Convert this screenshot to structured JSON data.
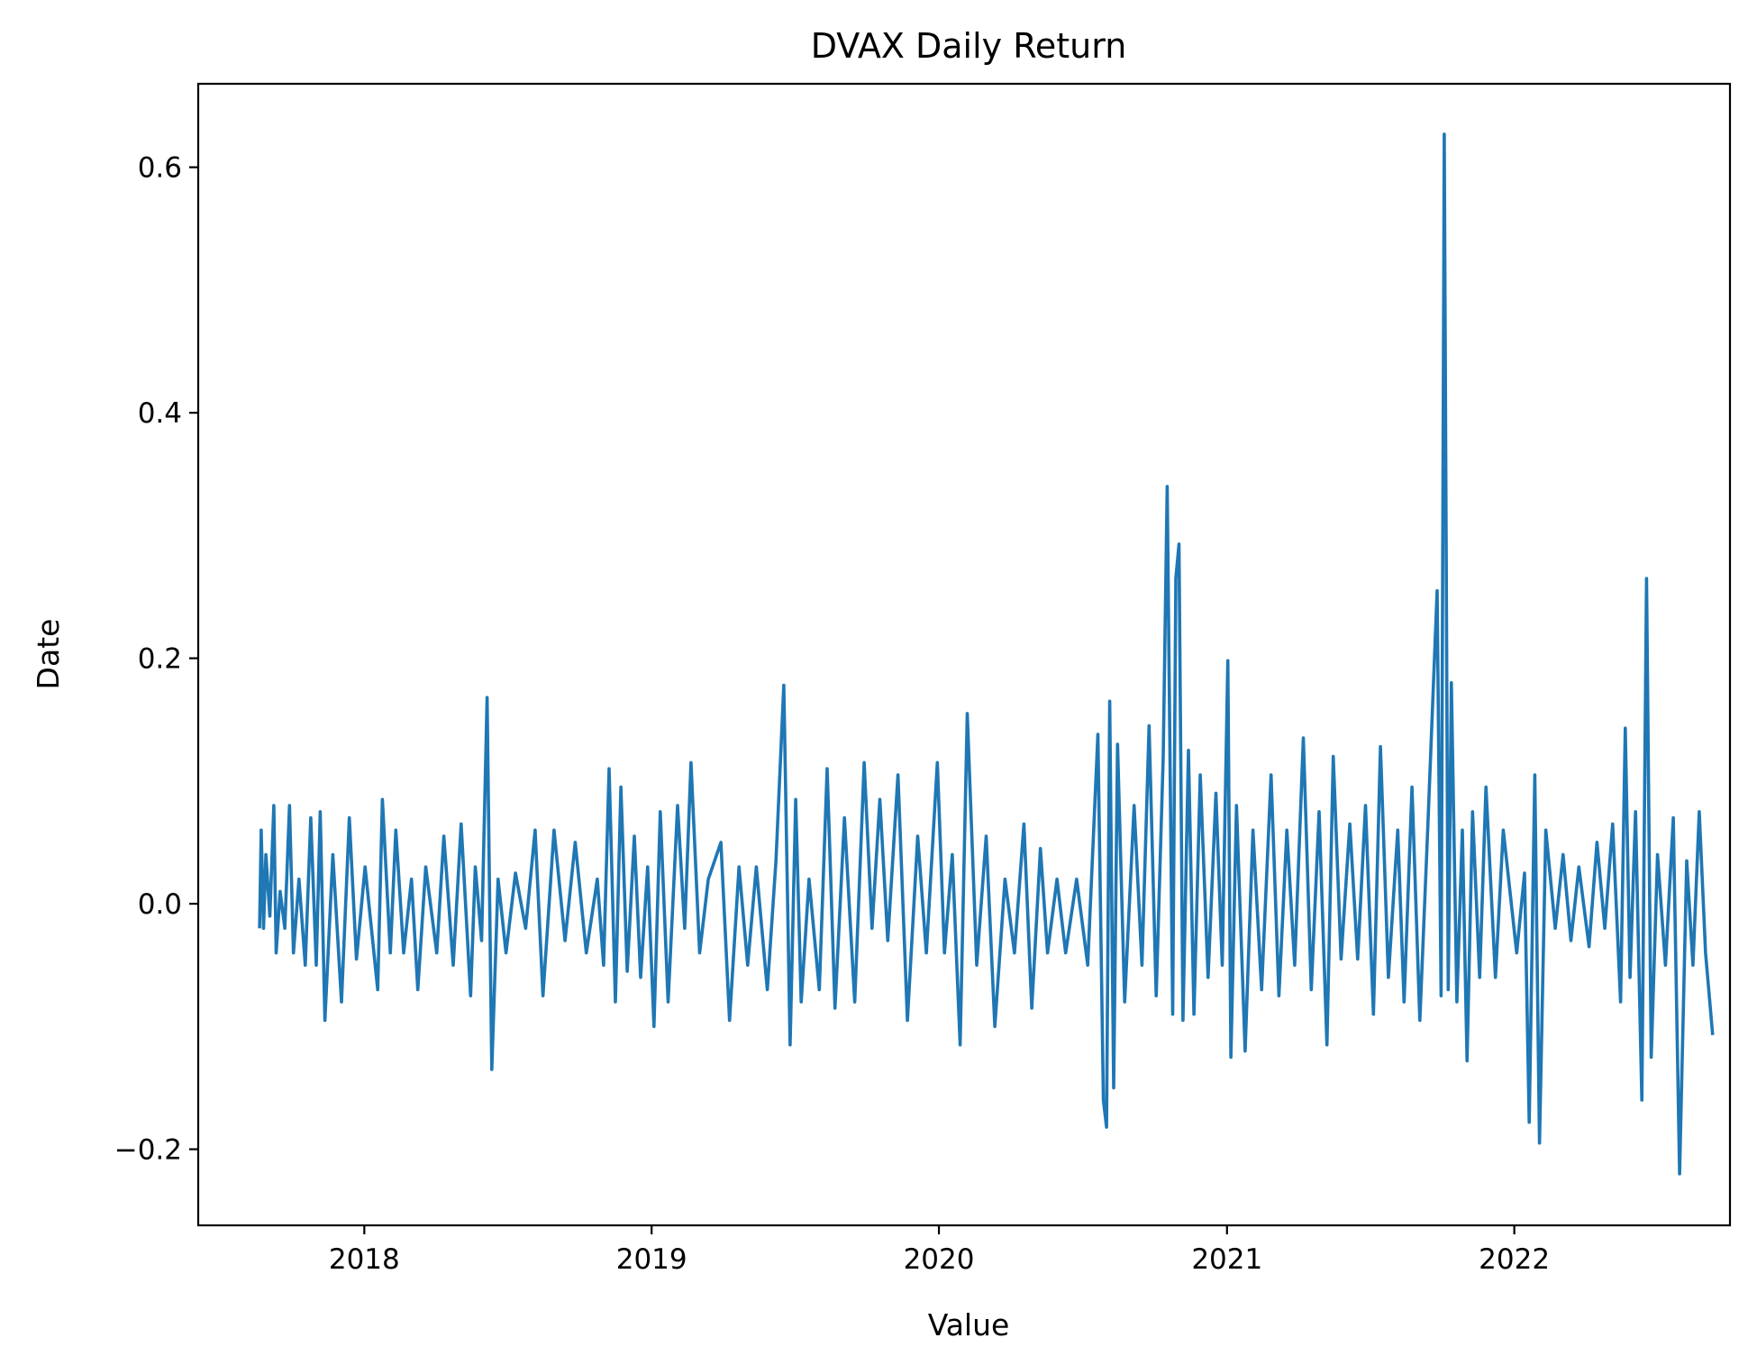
{
  "chart_data": {
    "type": "line",
    "title": "DVAX Daily Return",
    "xlabel": "Value",
    "ylabel": "Date",
    "x_axis_type": "date",
    "x_range": [
      "2017-06-04",
      "2022-10-02"
    ],
    "ylim": [
      -0.262,
      0.668
    ],
    "x_ticks": [
      {
        "date": "2018-01-01",
        "label": "2018"
      },
      {
        "date": "2019-01-01",
        "label": "2019"
      },
      {
        "date": "2020-01-01",
        "label": "2020"
      },
      {
        "date": "2021-01-01",
        "label": "2021"
      },
      {
        "date": "2022-01-01",
        "label": "2022"
      }
    ],
    "y_ticks": [
      {
        "value": -0.2,
        "label": "−0.2"
      },
      {
        "value": 0.0,
        "label": "0.0"
      },
      {
        "value": 0.2,
        "label": "0.2"
      },
      {
        "value": 0.4,
        "label": "0.4"
      },
      {
        "value": 0.6,
        "label": "0.6"
      }
    ],
    "grid": false,
    "legend": "none",
    "series": [
      {
        "color": "#1f77b4",
        "points": [
          [
            "2017-08-21",
            -0.02
          ],
          [
            "2017-08-23",
            0.06
          ],
          [
            "2017-08-26",
            -0.02
          ],
          [
            "2017-08-29",
            0.04
          ],
          [
            "2017-09-03",
            -0.01
          ],
          [
            "2017-09-08",
            0.08
          ],
          [
            "2017-09-11",
            -0.04
          ],
          [
            "2017-09-16",
            0.01
          ],
          [
            "2017-09-22",
            -0.02
          ],
          [
            "2017-09-28",
            0.08
          ],
          [
            "2017-10-03",
            -0.04
          ],
          [
            "2017-10-10",
            0.02
          ],
          [
            "2017-10-18",
            -0.05
          ],
          [
            "2017-10-25",
            0.07
          ],
          [
            "2017-11-01",
            -0.05
          ],
          [
            "2017-11-06",
            0.075
          ],
          [
            "2017-11-12",
            -0.095
          ],
          [
            "2017-11-22",
            0.04
          ],
          [
            "2017-12-03",
            -0.08
          ],
          [
            "2017-12-13",
            0.07
          ],
          [
            "2017-12-22",
            -0.045
          ],
          [
            "2018-01-02",
            0.03
          ],
          [
            "2018-01-10",
            -0.02
          ],
          [
            "2018-01-18",
            -0.07
          ],
          [
            "2018-01-24",
            0.085
          ],
          [
            "2018-02-03",
            -0.04
          ],
          [
            "2018-02-10",
            0.06
          ],
          [
            "2018-02-20",
            -0.04
          ],
          [
            "2018-03-02",
            0.02
          ],
          [
            "2018-03-10",
            -0.07
          ],
          [
            "2018-03-20",
            0.03
          ],
          [
            "2018-04-03",
            -0.04
          ],
          [
            "2018-04-12",
            0.055
          ],
          [
            "2018-04-24",
            -0.05
          ],
          [
            "2018-05-04",
            0.065
          ],
          [
            "2018-05-16",
            -0.075
          ],
          [
            "2018-05-22",
            0.03
          ],
          [
            "2018-05-30",
            -0.03
          ],
          [
            "2018-06-06",
            0.168
          ],
          [
            "2018-06-12",
            -0.135
          ],
          [
            "2018-06-20",
            0.02
          ],
          [
            "2018-06-30",
            -0.04
          ],
          [
            "2018-07-12",
            0.025
          ],
          [
            "2018-07-25",
            -0.02
          ],
          [
            "2018-08-06",
            0.06
          ],
          [
            "2018-08-16",
            -0.075
          ],
          [
            "2018-08-30",
            0.06
          ],
          [
            "2018-09-13",
            -0.03
          ],
          [
            "2018-09-26",
            0.05
          ],
          [
            "2018-10-10",
            -0.04
          ],
          [
            "2018-10-24",
            0.02
          ],
          [
            "2018-11-01",
            -0.05
          ],
          [
            "2018-11-08",
            0.11
          ],
          [
            "2018-11-16",
            -0.08
          ],
          [
            "2018-11-23",
            0.095
          ],
          [
            "2018-12-01",
            -0.055
          ],
          [
            "2018-12-10",
            0.055
          ],
          [
            "2018-12-18",
            -0.06
          ],
          [
            "2018-12-27",
            0.03
          ],
          [
            "2019-01-04",
            -0.1
          ],
          [
            "2019-01-12",
            0.075
          ],
          [
            "2019-01-22",
            -0.08
          ],
          [
            "2019-02-03",
            0.08
          ],
          [
            "2019-02-12",
            -0.02
          ],
          [
            "2019-02-20",
            0.115
          ],
          [
            "2019-03-03",
            -0.04
          ],
          [
            "2019-03-14",
            0.02
          ],
          [
            "2019-03-30",
            0.05
          ],
          [
            "2019-04-10",
            -0.095
          ],
          [
            "2019-04-22",
            0.03
          ],
          [
            "2019-05-03",
            -0.05
          ],
          [
            "2019-05-14",
            0.03
          ],
          [
            "2019-05-28",
            -0.07
          ],
          [
            "2019-06-08",
            0.035
          ],
          [
            "2019-06-18",
            0.178
          ],
          [
            "2019-06-26",
            -0.115
          ],
          [
            "2019-07-03",
            0.085
          ],
          [
            "2019-07-10",
            -0.08
          ],
          [
            "2019-07-20",
            0.02
          ],
          [
            "2019-08-02",
            -0.07
          ],
          [
            "2019-08-12",
            0.11
          ],
          [
            "2019-08-22",
            -0.085
          ],
          [
            "2019-09-03",
            0.07
          ],
          [
            "2019-09-16",
            -0.08
          ],
          [
            "2019-09-28",
            0.115
          ],
          [
            "2019-10-08",
            -0.02
          ],
          [
            "2019-10-18",
            0.085
          ],
          [
            "2019-10-28",
            -0.03
          ],
          [
            "2019-11-10",
            0.105
          ],
          [
            "2019-11-22",
            -0.095
          ],
          [
            "2019-12-05",
            0.055
          ],
          [
            "2019-12-16",
            -0.04
          ],
          [
            "2019-12-30",
            0.115
          ],
          [
            "2020-01-08",
            -0.04
          ],
          [
            "2020-01-18",
            0.04
          ],
          [
            "2020-01-28",
            -0.115
          ],
          [
            "2020-02-06",
            0.155
          ],
          [
            "2020-02-18",
            -0.05
          ],
          [
            "2020-03-01",
            0.055
          ],
          [
            "2020-03-12",
            -0.1
          ],
          [
            "2020-03-25",
            0.02
          ],
          [
            "2020-04-06",
            -0.04
          ],
          [
            "2020-04-18",
            0.065
          ],
          [
            "2020-04-28",
            -0.085
          ],
          [
            "2020-05-09",
            0.045
          ],
          [
            "2020-05-18",
            -0.04
          ],
          [
            "2020-05-30",
            0.02
          ],
          [
            "2020-06-10",
            -0.04
          ],
          [
            "2020-06-24",
            0.02
          ],
          [
            "2020-07-08",
            -0.05
          ],
          [
            "2020-07-21",
            0.138
          ],
          [
            "2020-07-28",
            -0.16
          ],
          [
            "2020-08-01",
            -0.182
          ],
          [
            "2020-08-05",
            0.165
          ],
          [
            "2020-08-10",
            -0.15
          ],
          [
            "2020-08-15",
            0.13
          ],
          [
            "2020-08-24",
            -0.08
          ],
          [
            "2020-09-05",
            0.08
          ],
          [
            "2020-09-15",
            -0.05
          ],
          [
            "2020-09-24",
            0.145
          ],
          [
            "2020-10-03",
            -0.075
          ],
          [
            "2020-10-12",
            0.12
          ],
          [
            "2020-10-17",
            0.34
          ],
          [
            "2020-10-24",
            -0.09
          ],
          [
            "2020-10-28",
            0.265
          ],
          [
            "2020-11-01",
            0.293
          ],
          [
            "2020-11-06",
            -0.095
          ],
          [
            "2020-11-13",
            0.125
          ],
          [
            "2020-11-20",
            -0.09
          ],
          [
            "2020-11-28",
            0.105
          ],
          [
            "2020-12-08",
            -0.06
          ],
          [
            "2020-12-18",
            0.09
          ],
          [
            "2020-12-26",
            -0.05
          ],
          [
            "2021-01-02",
            0.198
          ],
          [
            "2021-01-06",
            -0.125
          ],
          [
            "2021-01-13",
            0.08
          ],
          [
            "2021-01-24",
            -0.12
          ],
          [
            "2021-02-03",
            0.06
          ],
          [
            "2021-02-14",
            -0.07
          ],
          [
            "2021-02-26",
            0.105
          ],
          [
            "2021-03-08",
            -0.075
          ],
          [
            "2021-03-18",
            0.06
          ],
          [
            "2021-03-28",
            -0.05
          ],
          [
            "2021-04-08",
            0.135
          ],
          [
            "2021-04-18",
            -0.07
          ],
          [
            "2021-04-28",
            0.075
          ],
          [
            "2021-05-08",
            -0.115
          ],
          [
            "2021-05-16",
            0.12
          ],
          [
            "2021-05-26",
            -0.045
          ],
          [
            "2021-06-06",
            0.065
          ],
          [
            "2021-06-16",
            -0.045
          ],
          [
            "2021-06-26",
            0.08
          ],
          [
            "2021-07-06",
            -0.09
          ],
          [
            "2021-07-15",
            0.128
          ],
          [
            "2021-07-25",
            -0.06
          ],
          [
            "2021-08-06",
            0.06
          ],
          [
            "2021-08-14",
            -0.08
          ],
          [
            "2021-08-24",
            0.095
          ],
          [
            "2021-09-03",
            -0.095
          ],
          [
            "2021-09-13",
            0.06
          ],
          [
            "2021-09-25",
            0.255
          ],
          [
            "2021-09-30",
            -0.075
          ],
          [
            "2021-10-04",
            0.627
          ],
          [
            "2021-10-09",
            -0.07
          ],
          [
            "2021-10-13",
            0.18
          ],
          [
            "2021-10-20",
            -0.08
          ],
          [
            "2021-10-27",
            0.06
          ],
          [
            "2021-11-02",
            -0.128
          ],
          [
            "2021-11-09",
            0.075
          ],
          [
            "2021-11-18",
            -0.06
          ],
          [
            "2021-11-26",
            0.095
          ],
          [
            "2021-12-08",
            -0.06
          ],
          [
            "2021-12-18",
            0.06
          ],
          [
            "2022-01-04",
            -0.04
          ],
          [
            "2022-01-14",
            0.025
          ],
          [
            "2022-01-20",
            -0.178
          ],
          [
            "2022-01-27",
            0.105
          ],
          [
            "2022-02-02",
            -0.195
          ],
          [
            "2022-02-10",
            0.06
          ],
          [
            "2022-02-22",
            -0.02
          ],
          [
            "2022-03-04",
            0.04
          ],
          [
            "2022-03-14",
            -0.03
          ],
          [
            "2022-03-24",
            0.03
          ],
          [
            "2022-04-06",
            -0.035
          ],
          [
            "2022-04-16",
            0.05
          ],
          [
            "2022-04-26",
            -0.02
          ],
          [
            "2022-05-06",
            0.065
          ],
          [
            "2022-05-16",
            -0.08
          ],
          [
            "2022-05-22",
            0.143
          ],
          [
            "2022-05-28",
            -0.06
          ],
          [
            "2022-06-04",
            0.075
          ],
          [
            "2022-06-12",
            -0.16
          ],
          [
            "2022-06-18",
            0.265
          ],
          [
            "2022-06-24",
            -0.125
          ],
          [
            "2022-07-02",
            0.04
          ],
          [
            "2022-07-12",
            -0.05
          ],
          [
            "2022-07-22",
            0.07
          ],
          [
            "2022-07-30",
            -0.22
          ],
          [
            "2022-08-08",
            0.035
          ],
          [
            "2022-08-16",
            -0.05
          ],
          [
            "2022-08-24",
            0.075
          ],
          [
            "2022-09-01",
            -0.04
          ],
          [
            "2022-09-10",
            -0.107
          ]
        ]
      }
    ]
  }
}
